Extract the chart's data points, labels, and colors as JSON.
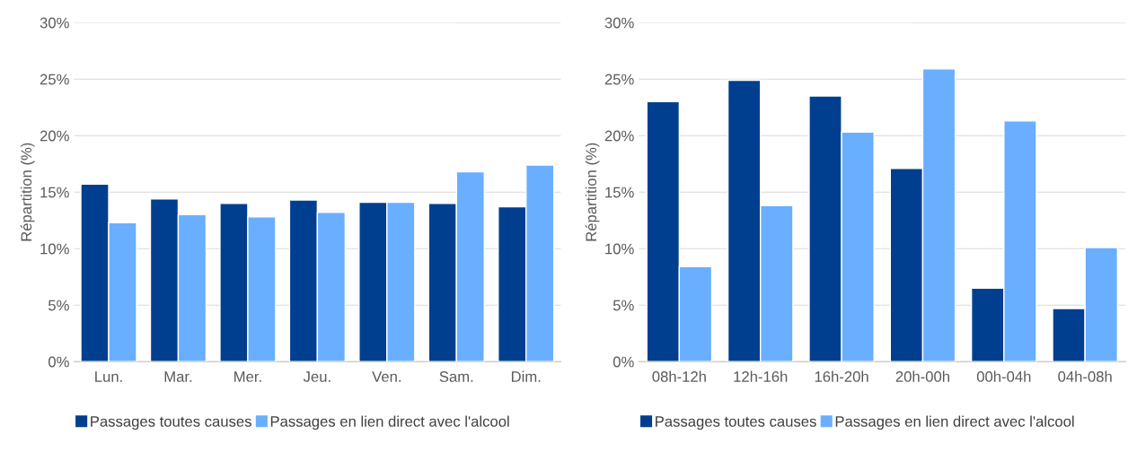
{
  "chart_data": [
    {
      "type": "bar",
      "ylabel": "Répartition (%)",
      "categories": [
        "Lun.",
        "Mar.",
        "Mer.",
        "Jeu.",
        "Ven.",
        "Sam.",
        "Dim."
      ],
      "series": [
        {
          "name": "Passages toutes causes",
          "color": "#003f8f",
          "values": [
            15.7,
            14.4,
            14.0,
            14.3,
            14.1,
            14.0,
            13.7
          ]
        },
        {
          "name": "Passages en lien direct avec l'alcool",
          "color": "#6aaeff",
          "values": [
            12.3,
            13.0,
            12.8,
            13.2,
            14.1,
            16.8,
            17.4
          ]
        }
      ],
      "ylim": [
        0,
        30
      ],
      "yticks": [
        {
          "value": 0,
          "label": "0%"
        },
        {
          "value": 5,
          "label": "5%"
        },
        {
          "value": 10,
          "label": "10%"
        },
        {
          "value": 15,
          "label": "15%"
        },
        {
          "value": 20,
          "label": "20%"
        },
        {
          "value": 25,
          "label": "25%"
        },
        {
          "value": 30,
          "label": "30%"
        }
      ],
      "grid": "y",
      "legend": "bottom"
    },
    {
      "type": "bar",
      "ylabel": "Répartition (%)",
      "categories": [
        "08h-12h",
        "12h-16h",
        "16h-20h",
        "20h-00h",
        "00h-04h",
        "04h-08h"
      ],
      "series": [
        {
          "name": "Passages toutes causes",
          "color": "#003f8f",
          "values": [
            23.0,
            24.9,
            23.5,
            17.1,
            6.5,
            4.7
          ]
        },
        {
          "name": "Passages en lien direct avec l'alcool",
          "color": "#6aaeff",
          "values": [
            8.4,
            13.8,
            20.3,
            25.9,
            21.3,
            10.1
          ]
        }
      ],
      "ylim": [
        0,
        30
      ],
      "yticks": [
        {
          "value": 0,
          "label": "0%"
        },
        {
          "value": 5,
          "label": "5%"
        },
        {
          "value": 10,
          "label": "10%"
        },
        {
          "value": 15,
          "label": "15%"
        },
        {
          "value": 20,
          "label": "20%"
        },
        {
          "value": 25,
          "label": "25%"
        },
        {
          "value": 30,
          "label": "30%"
        }
      ],
      "grid": "y",
      "legend": "bottom"
    }
  ]
}
